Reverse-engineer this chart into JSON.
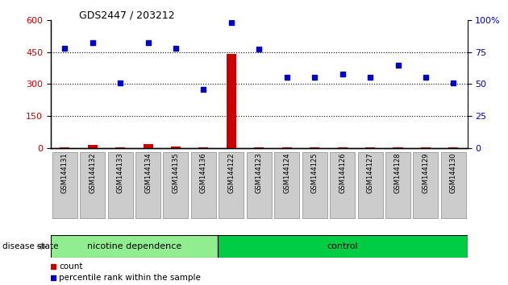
{
  "title": "GDS2447 / 203212",
  "samples": [
    "GSM144131",
    "GSM144132",
    "GSM144133",
    "GSM144134",
    "GSM144135",
    "GSM144136",
    "GSM144122",
    "GSM144123",
    "GSM144124",
    "GSM144125",
    "GSM144126",
    "GSM144127",
    "GSM144128",
    "GSM144129",
    "GSM144130"
  ],
  "count_values": [
    5,
    15,
    3,
    20,
    8,
    3,
    440,
    3,
    3,
    3,
    3,
    3,
    3,
    3,
    3
  ],
  "percentile_values": [
    78,
    82,
    51,
    82,
    78,
    46,
    98,
    77,
    55,
    55,
    58,
    55,
    65,
    55,
    51
  ],
  "highlighted_sample": "GSM144122",
  "nicotine_group": [
    "GSM144131",
    "GSM144132",
    "GSM144133",
    "GSM144134",
    "GSM144135",
    "GSM144136"
  ],
  "control_group": [
    "GSM144122",
    "GSM144123",
    "GSM144124",
    "GSM144125",
    "GSM144126",
    "GSM144127",
    "GSM144128",
    "GSM144129",
    "GSM144130"
  ],
  "ylim_left": [
    0,
    600
  ],
  "ylim_right": [
    0,
    100
  ],
  "yticks_left": [
    0,
    150,
    300,
    450,
    600
  ],
  "yticks_right": [
    0,
    25,
    50,
    75,
    100
  ],
  "left_color": "#cc0000",
  "right_color": "#0000cc",
  "bar_color": "#cc0000",
  "dot_color": "#0000cc",
  "nicotine_bg": "#90EE90",
  "control_bg": "#00CC44",
  "group_label_nicotine": "nicotine dependence",
  "group_label_control": "control",
  "disease_state_label": "disease state",
  "legend_count": "count",
  "legend_percentile": "percentile rank within the sample",
  "background_color": "#ffffff",
  "tick_label_bg": "#cccccc",
  "tick_label_edge": "#888888"
}
